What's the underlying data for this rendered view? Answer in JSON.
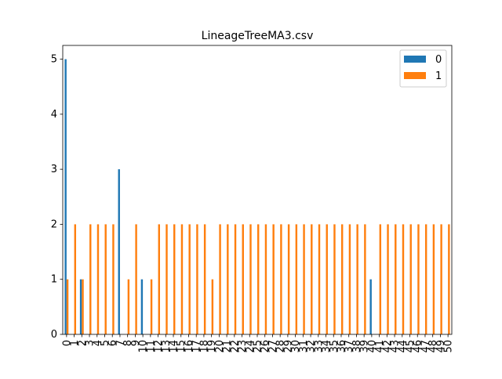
{
  "chart_data": {
    "type": "bar",
    "title": "LineageTreeMA3.csv",
    "xlabel": "",
    "ylabel": "",
    "ylim": [
      0,
      5.25
    ],
    "yticks": [
      0,
      1,
      2,
      3,
      4,
      5
    ],
    "grid": false,
    "legend_position": "top-right",
    "categories": [
      "0",
      "1",
      "2",
      "3",
      "4",
      "5",
      "6",
      "7",
      "8",
      "9",
      "10",
      "11",
      "12",
      "13",
      "14",
      "15",
      "16",
      "17",
      "18",
      "19",
      "20",
      "21",
      "22",
      "23",
      "24",
      "25",
      "26",
      "27",
      "28",
      "29",
      "30",
      "31",
      "32",
      "33",
      "34",
      "35",
      "36",
      "37",
      "38",
      "39",
      "40",
      "41",
      "42",
      "43",
      "44",
      "45",
      "46",
      "47",
      "48",
      "49",
      "50"
    ],
    "series": [
      {
        "name": "0",
        "color": "#1f77b4",
        "values": [
          5,
          0,
          1,
          0,
          0,
          0,
          0,
          3,
          0,
          0,
          1,
          0,
          0,
          0,
          0,
          0,
          0,
          0,
          0,
          0,
          0,
          0,
          0,
          0,
          0,
          0,
          0,
          0,
          0,
          0,
          0,
          0,
          0,
          0,
          0,
          0,
          0,
          0,
          0,
          0,
          1,
          0,
          0,
          0,
          0,
          0,
          0,
          0,
          0,
          0,
          0
        ]
      },
      {
        "name": "1",
        "color": "#ff7f0e",
        "values": [
          1,
          2,
          1,
          2,
          2,
          2,
          2,
          0,
          1,
          2,
          0,
          1,
          2,
          2,
          2,
          2,
          2,
          2,
          2,
          1,
          2,
          2,
          2,
          2,
          2,
          2,
          2,
          2,
          2,
          2,
          2,
          2,
          2,
          2,
          2,
          2,
          2,
          2,
          2,
          2,
          0,
          2,
          2,
          2,
          2,
          2,
          2,
          2,
          2,
          2,
          2
        ]
      }
    ]
  }
}
